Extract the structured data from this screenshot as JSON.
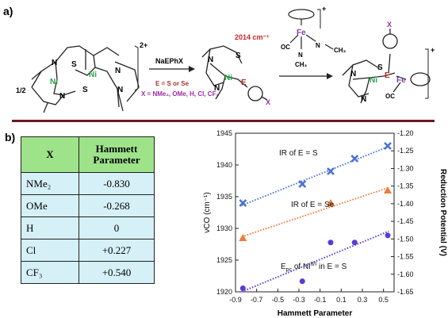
{
  "panels": {
    "a": "a)",
    "b": "b)"
  },
  "scheme": {
    "half": "1/2",
    "reagent": "NaEPhX",
    "e_label": "E = S or Se",
    "x_label": "X = NMe₂, OMe, H, Cl, CF₃",
    "wavenumber": "2014 cm⁻¹",
    "charge_start": "2+",
    "charge_end": "+",
    "charge_fe": "+",
    "fe": "Fe",
    "ni": "Ni",
    "n": "N",
    "s": "S",
    "e": "E",
    "x": "X",
    "co": "OC",
    "ch3": "CH₃",
    "nc": "N"
  },
  "table": {
    "headers": [
      "X",
      "Hammett Parameter"
    ],
    "rows": [
      {
        "x": "NMe₂",
        "value": "-0.830"
      },
      {
        "x": "OMe",
        "value": "-0.268"
      },
      {
        "x": "H",
        "value": "0"
      },
      {
        "x": "Cl",
        "value": "+0.227"
      },
      {
        "x": "CF₃",
        "value": "+0.540"
      }
    ]
  },
  "chart_data": {
    "type": "scatter",
    "xlabel": "Hammett Parameter",
    "ylabel": "νCO (cm⁻¹)",
    "y2label": "Reduction Potential (V)",
    "xlim": [
      -0.9,
      0.6
    ],
    "ylim": [
      1920,
      1945
    ],
    "y2lim": [
      -1.65,
      -1.2
    ],
    "xticks": [
      "-0.9",
      "-0.7",
      "-0.5",
      "-0.3",
      "-0.1",
      "0.1",
      "0.3",
      "0.5"
    ],
    "yticks": [
      "1920",
      "1925",
      "1930",
      "1935",
      "1940",
      "1945"
    ],
    "y2ticks": [
      "-1.20",
      "-1.25",
      "-1.30",
      "-1.35",
      "-1.40",
      "-1.45",
      "-1.50",
      "-1.55",
      "-1.60",
      "-1.65"
    ],
    "series": [
      {
        "name": "IR of E = S",
        "axis": "left",
        "marker": "x",
        "color": "#4a72d6",
        "x": [
          -0.83,
          -0.268,
          0,
          0.227,
          0.54
        ],
        "y": [
          1934,
          1937,
          1939,
          1941,
          1943
        ]
      },
      {
        "name": "IR of E = Se",
        "axis": "left",
        "marker": "triangle",
        "color": "#ee7b3a",
        "x": [
          -0.83,
          0,
          0.54
        ],
        "y": [
          1928.5,
          1934,
          1936
        ]
      },
      {
        "name": "Epc of NiII/I in E = S",
        "axis": "right",
        "marker": "circle",
        "color": "#5a3ad6",
        "x": [
          -0.83,
          -0.268,
          0,
          0.227,
          0.54
        ],
        "y": [
          -1.64,
          -1.62,
          -1.51,
          -1.51,
          -1.49
        ]
      }
    ],
    "annotations": {
      "s": "IR of E = S",
      "se": "IR of E = Se",
      "epc_main": "E",
      "epc_sub": "pc",
      "epc_mid": " of Ni",
      "epc_sup": "II/I",
      "epc_end": " in E = S"
    }
  }
}
